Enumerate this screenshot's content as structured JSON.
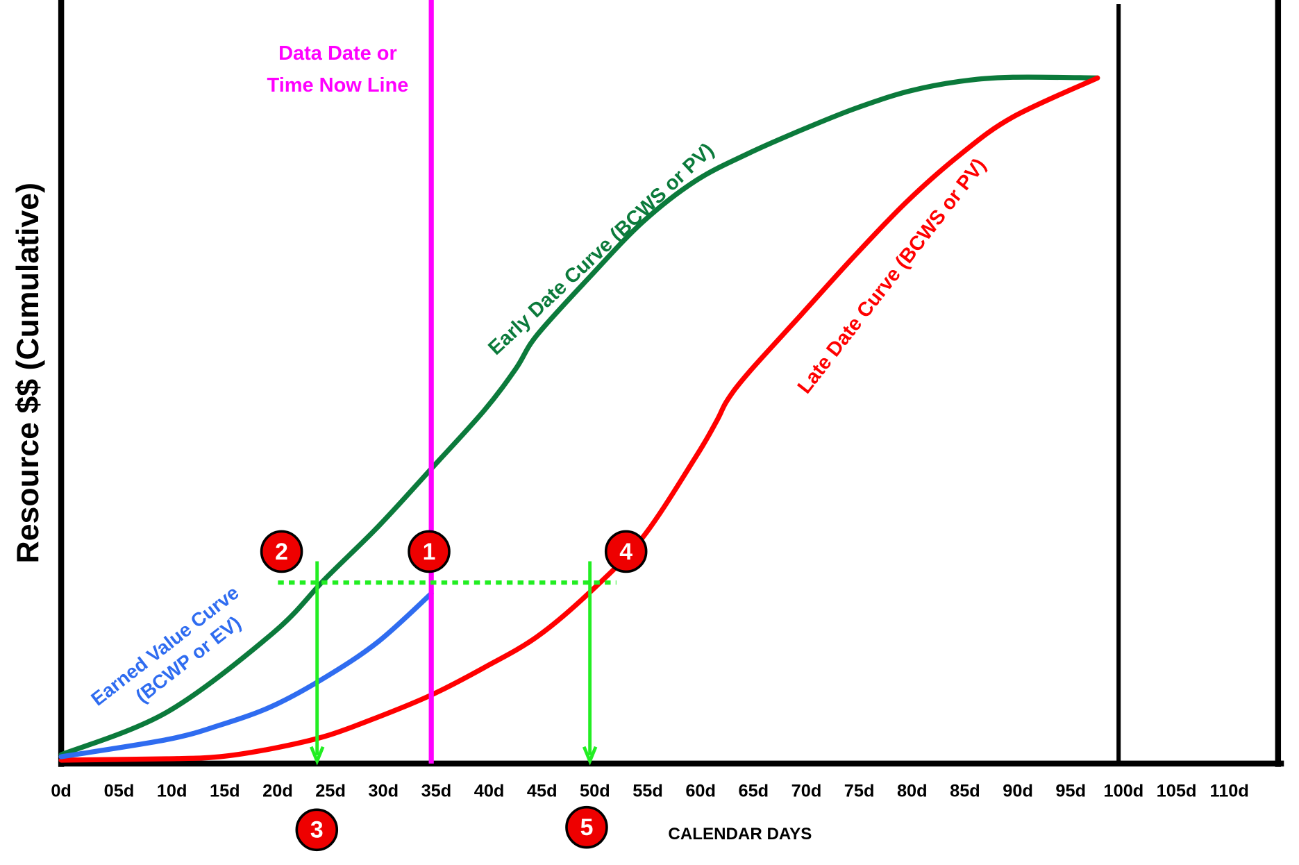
{
  "chart_data": {
    "type": "line",
    "y_label": "Resource $$ (Cumulative)",
    "x_label": "CALENDAR DAYS",
    "xlim": [
      0,
      115
    ],
    "ylim": [
      0,
      100
    ],
    "xticks": [
      {
        "value": 0,
        "label": "0d"
      },
      {
        "value": 5,
        "label": "05d"
      },
      {
        "value": 10,
        "label": "10d"
      },
      {
        "value": 15,
        "label": "15d"
      },
      {
        "value": 20,
        "label": "20d"
      },
      {
        "value": 25,
        "label": "25d"
      },
      {
        "value": 30,
        "label": "30d"
      },
      {
        "value": 35,
        "label": "35d"
      },
      {
        "value": 40,
        "label": "40d"
      },
      {
        "value": 45,
        "label": "45d"
      },
      {
        "value": 50,
        "label": "50d"
      },
      {
        "value": 55,
        "label": "55d"
      },
      {
        "value": 60,
        "label": "60d"
      },
      {
        "value": 65,
        "label": "65d"
      },
      {
        "value": 70,
        "label": "70d"
      },
      {
        "value": 75,
        "label": "75d"
      },
      {
        "value": 80,
        "label": "80d"
      },
      {
        "value": 85,
        "label": "85d"
      },
      {
        "value": 90,
        "label": "90d"
      },
      {
        "value": 95,
        "label": "95d"
      },
      {
        "value": 100,
        "label": "100d"
      },
      {
        "value": 105,
        "label": "105d"
      },
      {
        "value": 110,
        "label": "110d"
      }
    ],
    "series": [
      {
        "name": [
          "Early Date Curve (BCWS or PV)"
        ],
        "color": "#0b7a3b",
        "x": [
          0,
          10,
          20,
          25,
          30,
          35,
          40,
          43,
          45,
          50,
          55,
          60,
          65,
          70,
          75,
          80,
          85,
          90,
          98
        ],
        "values": [
          1.3,
          7.5,
          19,
          27,
          34.6,
          43,
          51.5,
          57.6,
          62.5,
          71,
          79,
          85,
          89,
          92.4,
          95.5,
          98,
          99.5,
          100.1,
          100
        ]
      },
      {
        "name": [
          "Late Date Curve (BCWS or PV)"
        ],
        "color": "#ff0000",
        "x": [
          0,
          10,
          15,
          20,
          25,
          30,
          35,
          40,
          45,
          50,
          55,
          60,
          62,
          63,
          65,
          70,
          75,
          80,
          85,
          90,
          98
        ],
        "values": [
          0.5,
          0.7,
          1,
          2.2,
          4,
          6.8,
          10,
          14,
          18.5,
          25,
          33,
          44.7,
          50,
          53,
          57,
          65.5,
          74,
          82,
          88.8,
          94.3,
          100
        ]
      },
      {
        "name": [
          "Earned Value Curve",
          "(BCWP or EV)"
        ],
        "color": "#2f6cf0",
        "x": [
          0,
          10,
          15,
          20,
          25,
          30,
          35
        ],
        "values": [
          1,
          3.5,
          5.6,
          8.4,
          12.6,
          17.8,
          24.8
        ]
      }
    ],
    "data_date_line": {
      "x": 35,
      "color": "#ff00ff",
      "label": [
        "Data Date or",
        "Time Now Line"
      ]
    },
    "completion_line": {
      "x": 100
    },
    "dotted_line": {
      "x": [
        20.5,
        52.5
      ],
      "y": 26.4,
      "color": "#22ee22"
    },
    "arrows": [
      {
        "x": 24.2,
        "y_from": 29.5
      },
      {
        "x": 50,
        "y_from": 29.5
      }
    ],
    "markers": [
      "1",
      "2",
      "3",
      "4",
      "5"
    ]
  }
}
